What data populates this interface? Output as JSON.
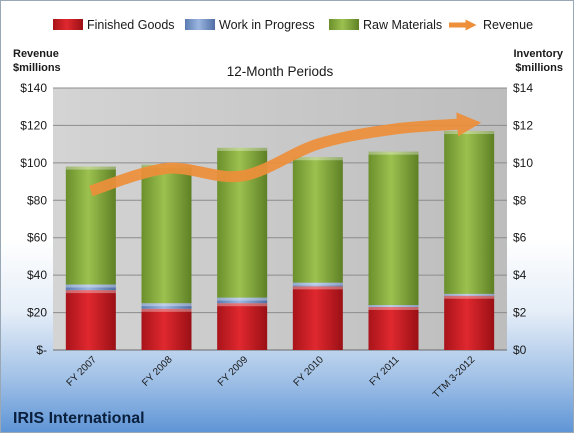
{
  "chart_data": {
    "type": "bar",
    "title": "12-Month Periods",
    "categories": [
      "FY 2007",
      "FY 2008",
      "FY 2009",
      "FY 2010",
      "FY 2011",
      "TTM 3-2012"
    ],
    "stacked_series": [
      {
        "name": "Finished Goods",
        "axis": "right",
        "values": [
          3.2,
          2.2,
          2.5,
          3.4,
          2.3,
          2.9
        ]
      },
      {
        "name": "Work in Progress",
        "axis": "right",
        "values": [
          0.3,
          0.3,
          0.3,
          0.2,
          0.1,
          0.1
        ]
      },
      {
        "name": "Raw Materials",
        "axis": "right",
        "values": [
          6.3,
          7.4,
          8.0,
          6.7,
          8.2,
          8.7
        ]
      }
    ],
    "line_series": {
      "name": "Revenue",
      "axis": "left",
      "values": [
        85,
        97,
        93,
        110,
        118,
        121
      ]
    },
    "left_axis": {
      "label_line1": "Revenue",
      "label_line2": "$millions",
      "ylim": [
        0,
        140
      ],
      "ticks": [
        0,
        20,
        40,
        60,
        80,
        100,
        120,
        140
      ],
      "tick_labels": [
        "$-",
        "$20",
        "$40",
        "$60",
        "$80",
        "$100",
        "$120",
        "$140"
      ]
    },
    "right_axis": {
      "label_line1": "Inventory",
      "label_line2": "$millions",
      "ylim": [
        0,
        14
      ],
      "ticks": [
        0,
        2,
        4,
        6,
        8,
        10,
        12,
        14
      ],
      "tick_labels": [
        "$0",
        "$2",
        "$4",
        "$6",
        "$8",
        "$10",
        "$12",
        "$14"
      ]
    },
    "grid": true,
    "legend": "top",
    "colors": {
      "Finished Goods": "#c0181e",
      "Work in Progress": "#6e8fc4",
      "Raw Materials": "#7fa33a",
      "Revenue": "#ee8f3a"
    }
  },
  "brand": "IRIS International"
}
